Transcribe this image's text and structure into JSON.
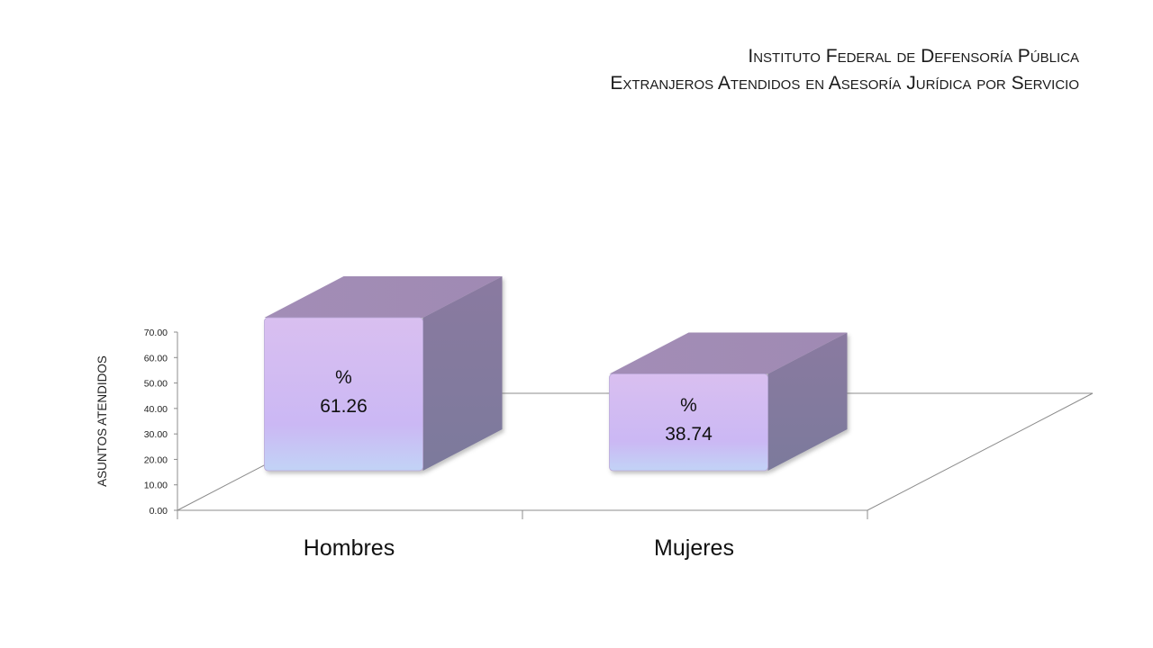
{
  "header": {
    "title": "Instituto Federal de Defensoría Pública",
    "subtitle": "Extranjeros Atendidos en Asesoría Jurídica por Servicio"
  },
  "chart_data": {
    "type": "bar",
    "style": "3d-column",
    "title": "Instituto Federal de Defensoría Pública",
    "subtitle": "Extranjeros Atendidos en Asesoría Jurídica por Servicio",
    "ylabel": "ASUNTOS ATENDIDOS",
    "xlabel": "",
    "categories": [
      "Hombres",
      "Mujeres"
    ],
    "values": [
      61.26,
      38.74
    ],
    "data_labels": [
      {
        "prefix": "%",
        "value": "61.26"
      },
      {
        "prefix": "%",
        "value": "38.74"
      }
    ],
    "ylim": [
      0,
      70
    ],
    "y_ticks": [
      "0.00",
      "10.00",
      "20.00",
      "30.00",
      "40.00",
      "50.00",
      "60.00",
      "70.00"
    ],
    "grid": false,
    "legend": "none",
    "colors": {
      "bar_front_top": "#d7bdf0",
      "bar_front_bottom": "#c3d0f5",
      "bar_side": "#857a9c",
      "bar_top": "#a48fb8"
    }
  }
}
